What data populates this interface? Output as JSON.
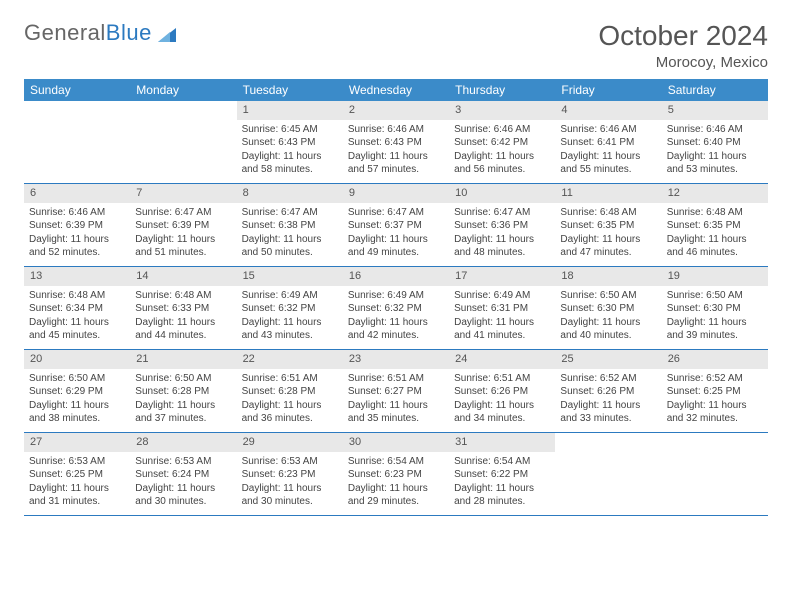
{
  "brand": {
    "part1": "General",
    "part2": "Blue"
  },
  "title": "October 2024",
  "location": "Morocoy, Mexico",
  "colors": {
    "header_bg": "#3b8bc9",
    "header_text": "#ffffff",
    "rule": "#2c7ac0",
    "num_bg": "#e8e8e8",
    "body_text": "#444444",
    "title_text": "#555555",
    "logo_gray": "#666666",
    "logo_blue": "#2c7ac0",
    "page_bg": "#ffffff"
  },
  "dow": [
    "Sunday",
    "Monday",
    "Tuesday",
    "Wednesday",
    "Thursday",
    "Friday",
    "Saturday"
  ],
  "weeks": [
    [
      {
        "n": "",
        "sr": "",
        "ss": "",
        "dl": ""
      },
      {
        "n": "",
        "sr": "",
        "ss": "",
        "dl": ""
      },
      {
        "n": "1",
        "sr": "Sunrise: 6:45 AM",
        "ss": "Sunset: 6:43 PM",
        "dl": "Daylight: 11 hours and 58 minutes."
      },
      {
        "n": "2",
        "sr": "Sunrise: 6:46 AM",
        "ss": "Sunset: 6:43 PM",
        "dl": "Daylight: 11 hours and 57 minutes."
      },
      {
        "n": "3",
        "sr": "Sunrise: 6:46 AM",
        "ss": "Sunset: 6:42 PM",
        "dl": "Daylight: 11 hours and 56 minutes."
      },
      {
        "n": "4",
        "sr": "Sunrise: 6:46 AM",
        "ss": "Sunset: 6:41 PM",
        "dl": "Daylight: 11 hours and 55 minutes."
      },
      {
        "n": "5",
        "sr": "Sunrise: 6:46 AM",
        "ss": "Sunset: 6:40 PM",
        "dl": "Daylight: 11 hours and 53 minutes."
      }
    ],
    [
      {
        "n": "6",
        "sr": "Sunrise: 6:46 AM",
        "ss": "Sunset: 6:39 PM",
        "dl": "Daylight: 11 hours and 52 minutes."
      },
      {
        "n": "7",
        "sr": "Sunrise: 6:47 AM",
        "ss": "Sunset: 6:39 PM",
        "dl": "Daylight: 11 hours and 51 minutes."
      },
      {
        "n": "8",
        "sr": "Sunrise: 6:47 AM",
        "ss": "Sunset: 6:38 PM",
        "dl": "Daylight: 11 hours and 50 minutes."
      },
      {
        "n": "9",
        "sr": "Sunrise: 6:47 AM",
        "ss": "Sunset: 6:37 PM",
        "dl": "Daylight: 11 hours and 49 minutes."
      },
      {
        "n": "10",
        "sr": "Sunrise: 6:47 AM",
        "ss": "Sunset: 6:36 PM",
        "dl": "Daylight: 11 hours and 48 minutes."
      },
      {
        "n": "11",
        "sr": "Sunrise: 6:48 AM",
        "ss": "Sunset: 6:35 PM",
        "dl": "Daylight: 11 hours and 47 minutes."
      },
      {
        "n": "12",
        "sr": "Sunrise: 6:48 AM",
        "ss": "Sunset: 6:35 PM",
        "dl": "Daylight: 11 hours and 46 minutes."
      }
    ],
    [
      {
        "n": "13",
        "sr": "Sunrise: 6:48 AM",
        "ss": "Sunset: 6:34 PM",
        "dl": "Daylight: 11 hours and 45 minutes."
      },
      {
        "n": "14",
        "sr": "Sunrise: 6:48 AM",
        "ss": "Sunset: 6:33 PM",
        "dl": "Daylight: 11 hours and 44 minutes."
      },
      {
        "n": "15",
        "sr": "Sunrise: 6:49 AM",
        "ss": "Sunset: 6:32 PM",
        "dl": "Daylight: 11 hours and 43 minutes."
      },
      {
        "n": "16",
        "sr": "Sunrise: 6:49 AM",
        "ss": "Sunset: 6:32 PM",
        "dl": "Daylight: 11 hours and 42 minutes."
      },
      {
        "n": "17",
        "sr": "Sunrise: 6:49 AM",
        "ss": "Sunset: 6:31 PM",
        "dl": "Daylight: 11 hours and 41 minutes."
      },
      {
        "n": "18",
        "sr": "Sunrise: 6:50 AM",
        "ss": "Sunset: 6:30 PM",
        "dl": "Daylight: 11 hours and 40 minutes."
      },
      {
        "n": "19",
        "sr": "Sunrise: 6:50 AM",
        "ss": "Sunset: 6:30 PM",
        "dl": "Daylight: 11 hours and 39 minutes."
      }
    ],
    [
      {
        "n": "20",
        "sr": "Sunrise: 6:50 AM",
        "ss": "Sunset: 6:29 PM",
        "dl": "Daylight: 11 hours and 38 minutes."
      },
      {
        "n": "21",
        "sr": "Sunrise: 6:50 AM",
        "ss": "Sunset: 6:28 PM",
        "dl": "Daylight: 11 hours and 37 minutes."
      },
      {
        "n": "22",
        "sr": "Sunrise: 6:51 AM",
        "ss": "Sunset: 6:28 PM",
        "dl": "Daylight: 11 hours and 36 minutes."
      },
      {
        "n": "23",
        "sr": "Sunrise: 6:51 AM",
        "ss": "Sunset: 6:27 PM",
        "dl": "Daylight: 11 hours and 35 minutes."
      },
      {
        "n": "24",
        "sr": "Sunrise: 6:51 AM",
        "ss": "Sunset: 6:26 PM",
        "dl": "Daylight: 11 hours and 34 minutes."
      },
      {
        "n": "25",
        "sr": "Sunrise: 6:52 AM",
        "ss": "Sunset: 6:26 PM",
        "dl": "Daylight: 11 hours and 33 minutes."
      },
      {
        "n": "26",
        "sr": "Sunrise: 6:52 AM",
        "ss": "Sunset: 6:25 PM",
        "dl": "Daylight: 11 hours and 32 minutes."
      }
    ],
    [
      {
        "n": "27",
        "sr": "Sunrise: 6:53 AM",
        "ss": "Sunset: 6:25 PM",
        "dl": "Daylight: 11 hours and 31 minutes."
      },
      {
        "n": "28",
        "sr": "Sunrise: 6:53 AM",
        "ss": "Sunset: 6:24 PM",
        "dl": "Daylight: 11 hours and 30 minutes."
      },
      {
        "n": "29",
        "sr": "Sunrise: 6:53 AM",
        "ss": "Sunset: 6:23 PM",
        "dl": "Daylight: 11 hours and 30 minutes."
      },
      {
        "n": "30",
        "sr": "Sunrise: 6:54 AM",
        "ss": "Sunset: 6:23 PM",
        "dl": "Daylight: 11 hours and 29 minutes."
      },
      {
        "n": "31",
        "sr": "Sunrise: 6:54 AM",
        "ss": "Sunset: 6:22 PM",
        "dl": "Daylight: 11 hours and 28 minutes."
      },
      {
        "n": "",
        "sr": "",
        "ss": "",
        "dl": ""
      },
      {
        "n": "",
        "sr": "",
        "ss": "",
        "dl": ""
      }
    ]
  ]
}
